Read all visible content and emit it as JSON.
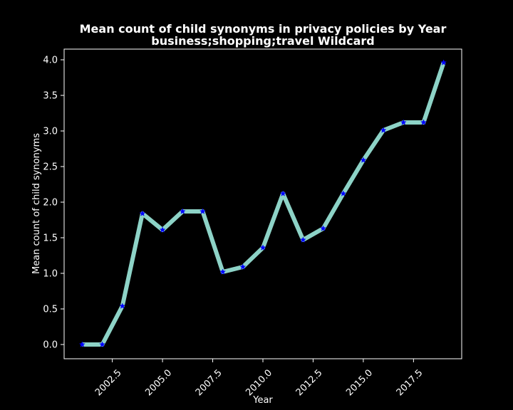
{
  "chart_data": {
    "type": "line",
    "title": "Mean count of child synonyms in privacy policies by Year",
    "subtitle": "business;shopping;travel Wildcard",
    "xlabel": "Year",
    "ylabel": "Mean count of child synonyms",
    "xlim": [
      2000.1,
      2019.9
    ],
    "ylim": [
      -0.2,
      4.15
    ],
    "xticks": [
      2002.5,
      2005.0,
      2007.5,
      2010.0,
      2012.5,
      2015.0,
      2017.5
    ],
    "xtick_labels": [
      "2002.5",
      "2005.0",
      "2007.5",
      "2010.0",
      "2012.5",
      "2015.0",
      "2017.5"
    ],
    "yticks": [
      0.0,
      0.5,
      1.0,
      1.5,
      2.0,
      2.5,
      3.0,
      3.5,
      4.0
    ],
    "ytick_labels": [
      "0.0",
      "0.5",
      "1.0",
      "1.5",
      "2.0",
      "2.5",
      "3.0",
      "3.5",
      "4.0"
    ],
    "grid": false,
    "series": [
      {
        "x": [
          2001,
          2002,
          2003,
          2004,
          2005,
          2006,
          2007,
          2008,
          2009,
          2010,
          2011,
          2012,
          2013,
          2014,
          2015,
          2016,
          2017,
          2018,
          2019
        ],
        "y": [
          0.0,
          0.0,
          0.54,
          1.84,
          1.61,
          1.87,
          1.87,
          1.02,
          1.09,
          1.36,
          2.12,
          1.47,
          1.63,
          2.12,
          2.59,
          3.01,
          3.12,
          3.12,
          3.96
        ],
        "line_color": "#8dd3c7",
        "marker_color": "#0000ff",
        "marker": "star"
      }
    ]
  }
}
